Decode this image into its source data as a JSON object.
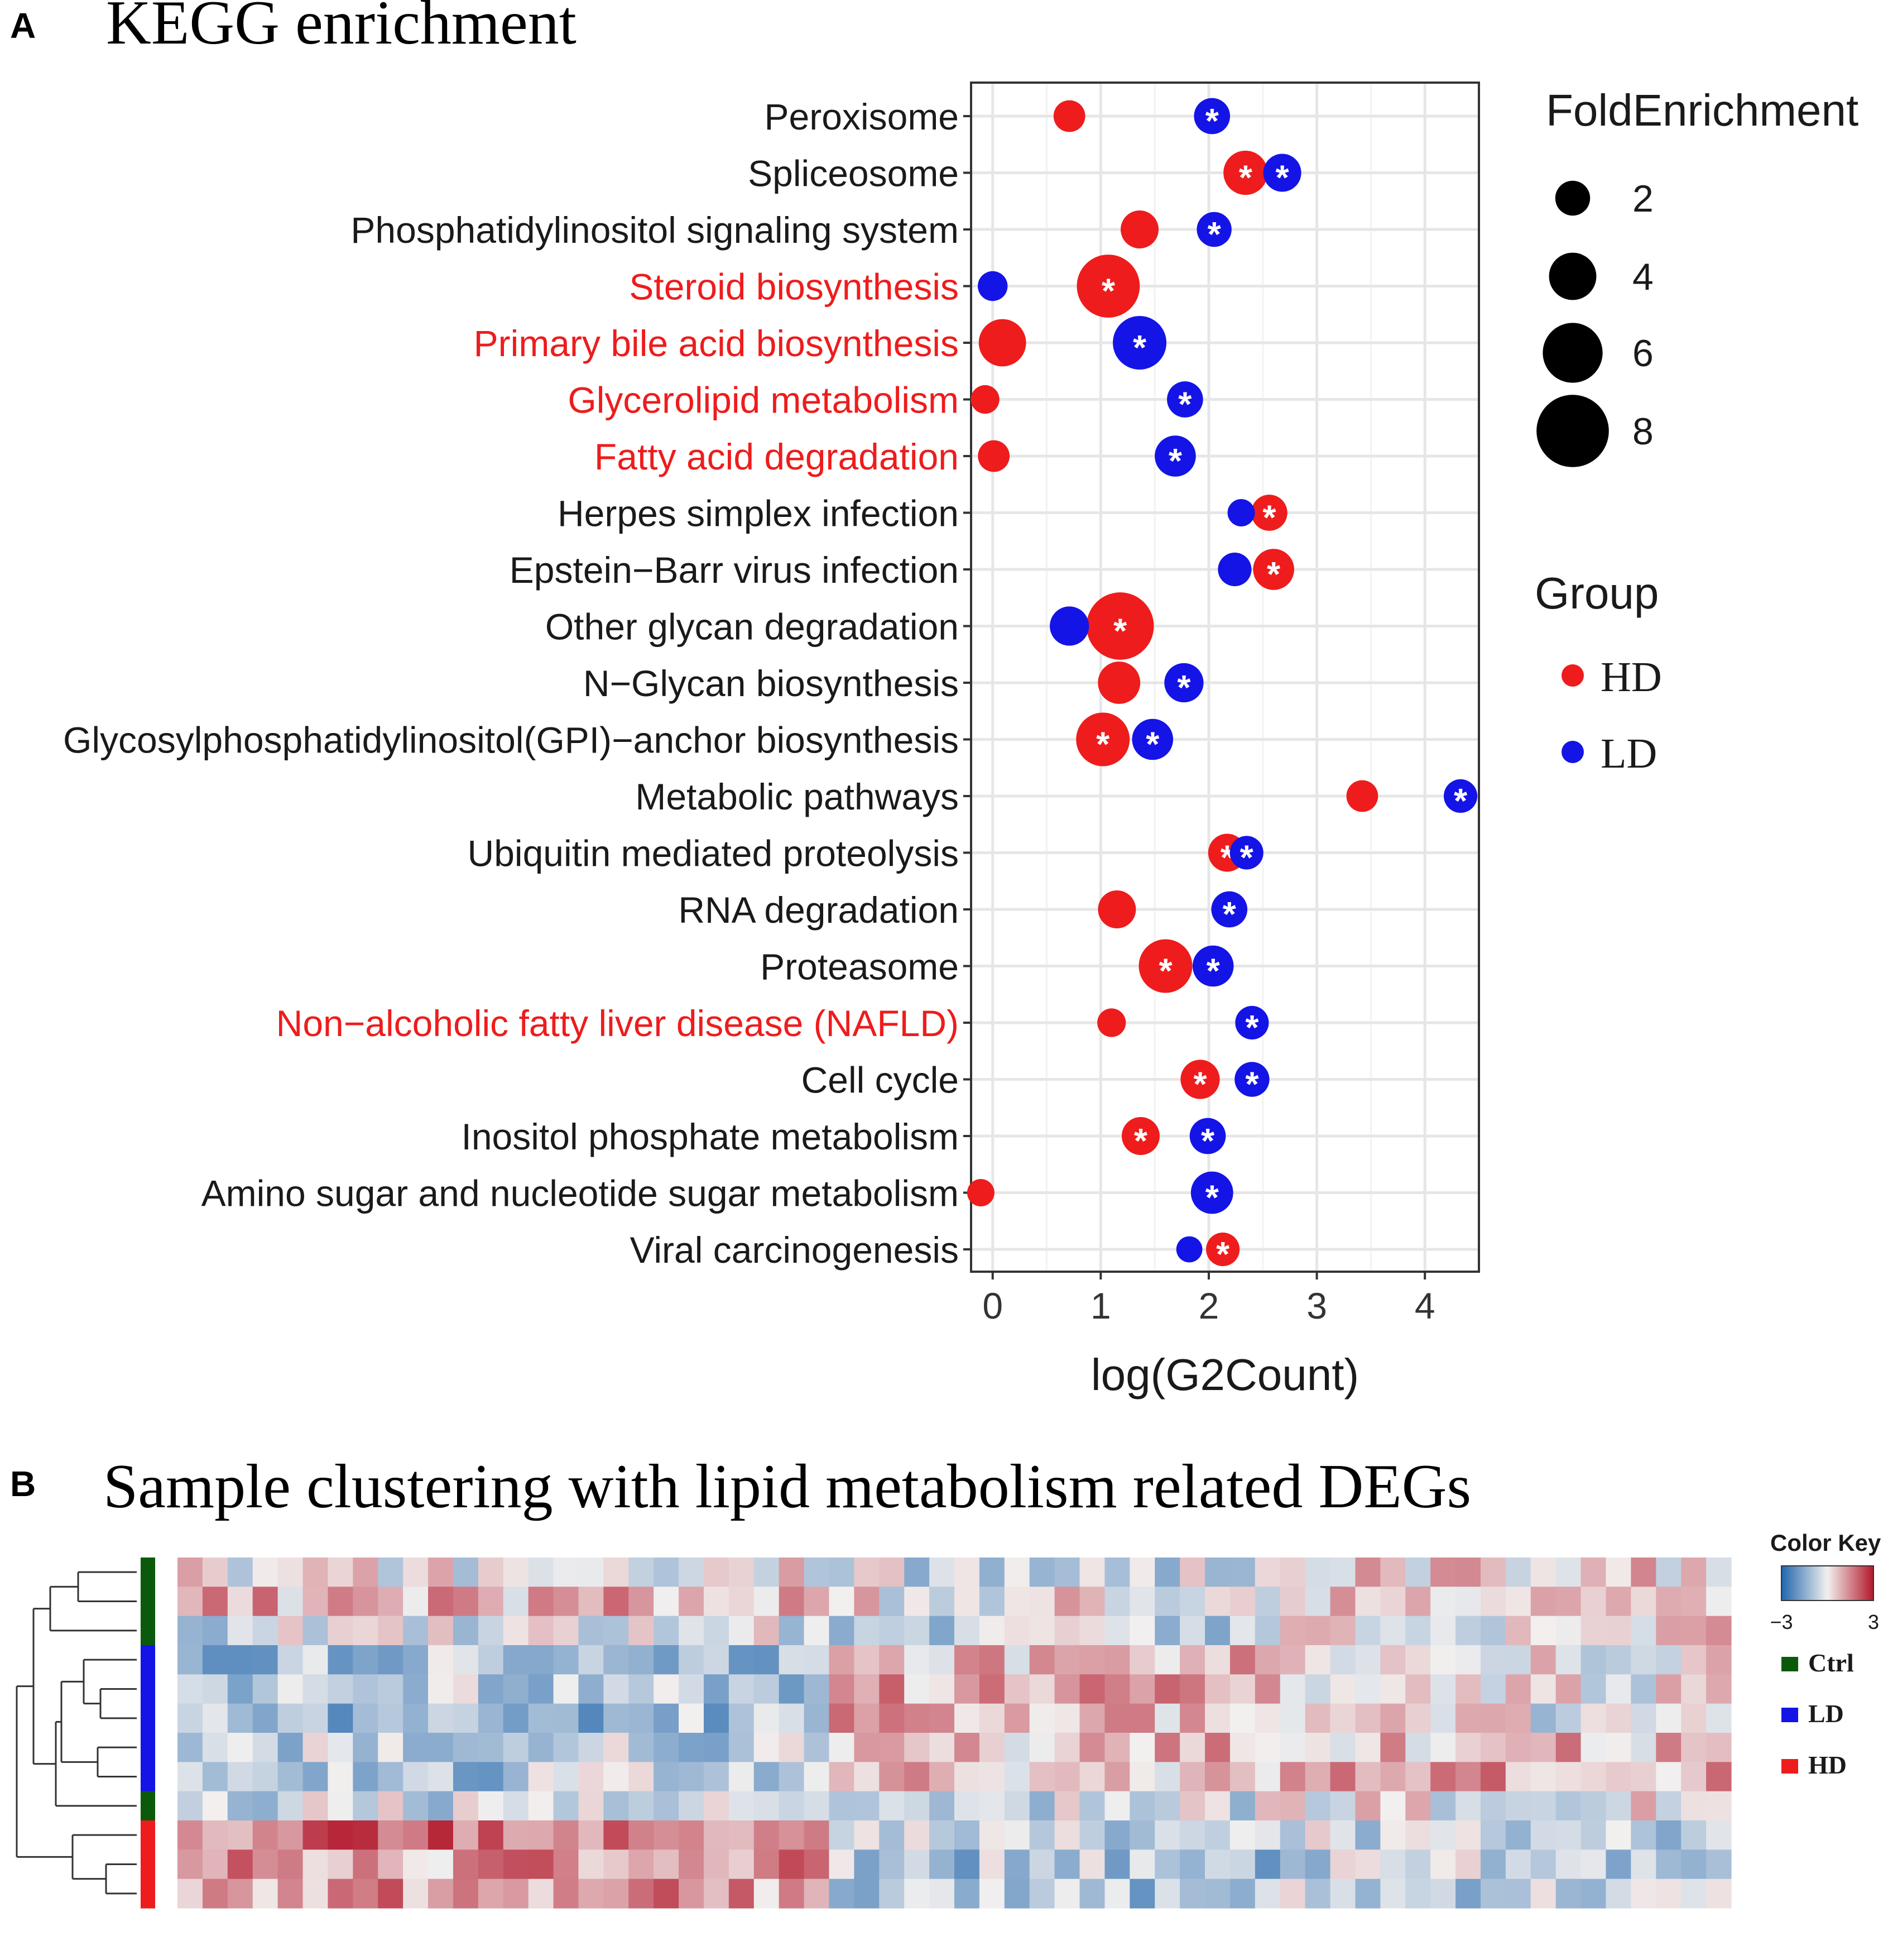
{
  "panel_a": {
    "letter": "A",
    "title": "KEGG enrichment"
  },
  "panel_b": {
    "letter": "B",
    "title": "Sample clustering with lipid metabolism related DEGs"
  },
  "colors": {
    "HD": "#ee1c1c",
    "LD": "#1414e6",
    "highlight_label": "#ee1c1c",
    "normal_label": "#1a1a1a",
    "grid": "#e6e6e6",
    "heat_low": "#2166ac",
    "heat_mid": "#f2f0ef",
    "heat_high": "#b2182b",
    "group_ctrl": "#0b5a0b",
    "group_ld": "#1414e6",
    "group_hd": "#ee1c1c"
  },
  "chart_data": [
    {
      "type": "scatter",
      "title": "KEGG enrichment",
      "xlabel": "log(G2Count)",
      "ylabel": "",
      "xlim": [
        -0.2,
        4.5
      ],
      "xticks": [
        0,
        1,
        2,
        3,
        4
      ],
      "grid": true,
      "significance_marker": "*",
      "categories": [
        {
          "label": "Peroxisome",
          "highlight": false
        },
        {
          "label": "Spliceosome",
          "highlight": false
        },
        {
          "label": "Phosphatidylinositol signaling system",
          "highlight": false
        },
        {
          "label": "Steroid biosynthesis",
          "highlight": true
        },
        {
          "label": "Primary bile acid biosynthesis",
          "highlight": true
        },
        {
          "label": "Glycerolipid metabolism",
          "highlight": true
        },
        {
          "label": "Fatty acid degradation",
          "highlight": true
        },
        {
          "label": "Herpes simplex infection",
          "highlight": false
        },
        {
          "label": "Epstein−Barr virus infection",
          "highlight": false
        },
        {
          "label": "Other glycan degradation",
          "highlight": false
        },
        {
          "label": "N−Glycan biosynthesis",
          "highlight": false
        },
        {
          "label": "Glycosylphosphatidylinositol(GPI)−anchor biosynthesis",
          "highlight": false
        },
        {
          "label": "Metabolic pathways",
          "highlight": false
        },
        {
          "label": "Ubiquitin mediated proteolysis",
          "highlight": false
        },
        {
          "label": "RNA degradation",
          "highlight": false
        },
        {
          "label": "Proteasome",
          "highlight": false
        },
        {
          "label": "Non−alcoholic fatty liver disease (NAFLD)",
          "highlight": true
        },
        {
          "label": "Cell cycle",
          "highlight": false
        },
        {
          "label": "Inositol phosphate metabolism",
          "highlight": false
        },
        {
          "label": "Amino sugar and nucleotide sugar metabolism",
          "highlight": false
        },
        {
          "label": "Viral carcinogenesis",
          "highlight": false
        }
      ],
      "series": [
        {
          "name": "HD",
          "x": [
            0.71,
            2.34,
            1.36,
            1.07,
            0.09,
            -0.07,
            0.01,
            2.56,
            2.6,
            1.18,
            1.17,
            1.02,
            3.42,
            2.17,
            1.15,
            1.6,
            1.1,
            1.92,
            1.37,
            -0.11,
            2.13
          ],
          "fold_enrichment": [
            1.5,
            3.5,
            2.5,
            6.5,
            4.0,
            1.0,
            1.5,
            2.2,
            3.0,
            7.2,
            3.2,
            5.0,
            1.5,
            2.5,
            2.5,
            5.0,
            1.0,
            2.7,
            2.5,
            0.8,
            1.8
          ],
          "significant": [
            false,
            true,
            false,
            true,
            false,
            false,
            false,
            true,
            true,
            true,
            false,
            true,
            false,
            true,
            false,
            true,
            false,
            true,
            true,
            false,
            true
          ]
        },
        {
          "name": "LD",
          "x": [
            2.03,
            2.68,
            2.05,
            0.0,
            1.36,
            1.78,
            1.69,
            2.3,
            2.24,
            0.71,
            1.77,
            1.48,
            4.33,
            2.35,
            2.19,
            2.04,
            2.4,
            2.4,
            1.99,
            2.03,
            1.82
          ],
          "fold_enrichment": [
            2.2,
            2.5,
            2.0,
            1.2,
            5.0,
            2.2,
            3.0,
            0.8,
            1.8,
            2.7,
            2.7,
            3.0,
            1.8,
            1.8,
            2.2,
            3.0,
            1.8,
            2.0,
            2.2,
            3.2,
            0.6
          ],
          "significant": [
            true,
            true,
            true,
            false,
            true,
            true,
            true,
            false,
            false,
            false,
            true,
            true,
            true,
            true,
            true,
            true,
            true,
            true,
            true,
            true,
            false
          ]
        }
      ],
      "legend": {
        "placement": "right",
        "size_title": "FoldEnrichment",
        "size_entries": [
          2,
          4,
          6,
          8
        ],
        "group_title": "Group",
        "group_entries": [
          "HD",
          "LD"
        ]
      }
    },
    {
      "type": "heatmap",
      "title": "Sample clustering with lipid metabolism related DEGs",
      "rows": 12,
      "columns": 62,
      "value_range": [
        -3,
        3
      ],
      "seed": 20240607,
      "row_groups": [
        "Ctrl",
        "Ctrl",
        "Ctrl",
        "LD",
        "LD",
        "LD",
        "LD",
        "LD",
        "Ctrl",
        "HD",
        "HD",
        "HD"
      ],
      "row_profiles": [
        {
          "group": "Ctrl",
          "base": -0.3,
          "left": 0.2,
          "mid": -0.2,
          "right": 0.6
        },
        {
          "group": "Ctrl",
          "base": 0.2,
          "left": 0.7,
          "mid": 0.0,
          "right": 0.5
        },
        {
          "group": "Ctrl",
          "base": -0.4,
          "left": -0.2,
          "mid": -0.3,
          "right": 0.4
        },
        {
          "group": "LD",
          "base": -0.5,
          "left": -0.8,
          "mid": 0.9,
          "right": 0.2
        },
        {
          "group": "LD",
          "base": -0.4,
          "left": -0.7,
          "mid": 1.2,
          "right": 0.3
        },
        {
          "group": "LD",
          "base": -0.5,
          "left": -0.9,
          "mid": 1.0,
          "right": 0.1
        },
        {
          "group": "LD",
          "base": -0.3,
          "left": -0.6,
          "mid": 0.8,
          "right": 0.9
        },
        {
          "group": "LD",
          "base": -0.3,
          "left": -0.7,
          "mid": 0.6,
          "right": 1.3
        },
        {
          "group": "Ctrl",
          "base": -0.3,
          "left": -0.3,
          "mid": -0.1,
          "right": 0.2
        },
        {
          "group": "HD",
          "base": 0.1,
          "left": 1.6,
          "mid": -0.8,
          "right": -0.6
        },
        {
          "group": "HD",
          "base": 0.0,
          "left": 1.1,
          "mid": -0.9,
          "right": -0.5
        },
        {
          "group": "HD",
          "base": 0.0,
          "left": 1.2,
          "mid": -1.0,
          "right": -0.6
        }
      ],
      "color_key": {
        "title": "Color Key",
        "min_label": "−3",
        "max_label": "3"
      },
      "legend_entries": [
        "Ctrl",
        "LD",
        "HD"
      ]
    }
  ]
}
